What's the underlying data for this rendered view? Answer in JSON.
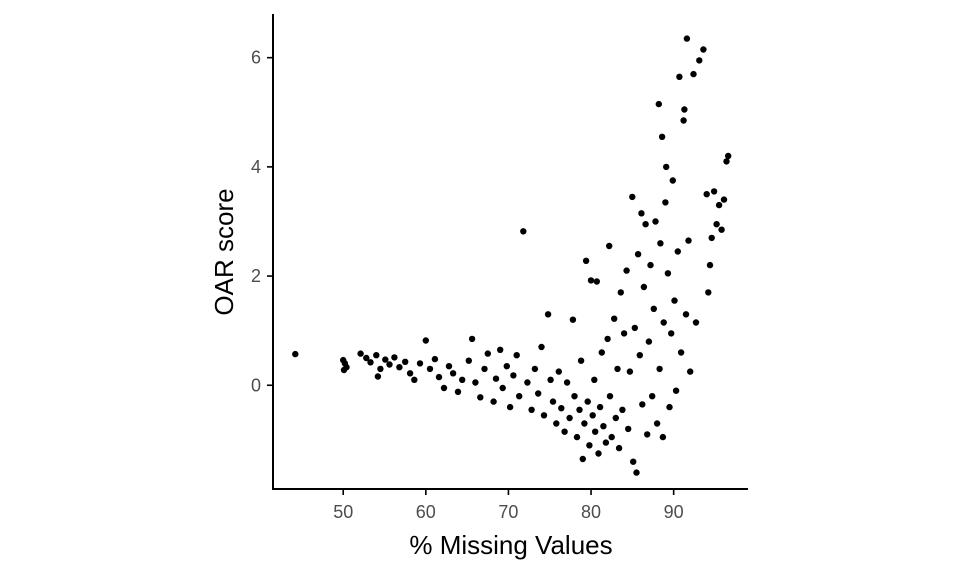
{
  "chart_data": {
    "type": "scatter",
    "xlabel": "% Missing Values",
    "ylabel": "OAR score",
    "xlim": [
      41.5,
      99
    ],
    "ylim": [
      -1.9,
      6.8
    ],
    "x_ticks": [
      50,
      60,
      70,
      80,
      90
    ],
    "x_tick_labels": [
      "50",
      "60",
      "70",
      "80",
      "90"
    ],
    "y_ticks": [
      0,
      2,
      4,
      6
    ],
    "y_tick_labels": [
      "0",
      "2",
      "4",
      "6"
    ],
    "grid": false,
    "legend": "none",
    "point_color": "#000000",
    "points": [
      [
        44.2,
        0.57
      ],
      [
        50.0,
        0.46
      ],
      [
        50.2,
        0.4
      ],
      [
        50.4,
        0.33
      ],
      [
        50.1,
        0.28
      ],
      [
        52.1,
        0.58
      ],
      [
        52.8,
        0.5
      ],
      [
        53.3,
        0.42
      ],
      [
        54.0,
        0.55
      ],
      [
        54.5,
        0.3
      ],
      [
        54.2,
        0.16
      ],
      [
        55.1,
        0.47
      ],
      [
        55.6,
        0.38
      ],
      [
        56.2,
        0.51
      ],
      [
        56.8,
        0.33
      ],
      [
        57.5,
        0.43
      ],
      [
        58.1,
        0.22
      ],
      [
        58.6,
        0.1
      ],
      [
        59.3,
        0.4
      ],
      [
        60.0,
        0.82
      ],
      [
        60.5,
        0.3
      ],
      [
        61.1,
        0.48
      ],
      [
        61.6,
        0.15
      ],
      [
        62.2,
        -0.05
      ],
      [
        62.8,
        0.35
      ],
      [
        63.3,
        0.22
      ],
      [
        63.9,
        -0.12
      ],
      [
        64.4,
        0.1
      ],
      [
        65.2,
        0.45
      ],
      [
        65.6,
        0.85
      ],
      [
        66.0,
        0.05
      ],
      [
        66.6,
        -0.22
      ],
      [
        67.1,
        0.3
      ],
      [
        67.5,
        0.58
      ],
      [
        68.2,
        -0.3
      ],
      [
        68.5,
        0.12
      ],
      [
        69.0,
        0.65
      ],
      [
        69.3,
        -0.05
      ],
      [
        69.8,
        0.35
      ],
      [
        70.2,
        -0.4
      ],
      [
        70.6,
        0.18
      ],
      [
        71.0,
        0.55
      ],
      [
        71.3,
        -0.2
      ],
      [
        71.8,
        2.82
      ],
      [
        72.3,
        0.05
      ],
      [
        72.8,
        -0.45
      ],
      [
        73.2,
        0.3
      ],
      [
        73.6,
        -0.15
      ],
      [
        74.0,
        0.7
      ],
      [
        74.3,
        -0.55
      ],
      [
        74.8,
        1.3
      ],
      [
        75.1,
        0.1
      ],
      [
        75.4,
        -0.3
      ],
      [
        75.8,
        -0.7
      ],
      [
        76.1,
        0.25
      ],
      [
        76.4,
        -0.42
      ],
      [
        76.8,
        -0.85
      ],
      [
        77.1,
        0.05
      ],
      [
        77.4,
        -0.6
      ],
      [
        77.8,
        1.2
      ],
      [
        78.0,
        -0.2
      ],
      [
        78.3,
        -0.95
      ],
      [
        78.6,
        -0.45
      ],
      [
        78.8,
        0.45
      ],
      [
        79.0,
        -1.35
      ],
      [
        79.2,
        -0.7
      ],
      [
        79.4,
        2.28
      ],
      [
        79.6,
        -0.3
      ],
      [
        79.8,
        -1.1
      ],
      [
        80.0,
        1.92
      ],
      [
        80.2,
        -0.55
      ],
      [
        80.4,
        0.1
      ],
      [
        80.5,
        -0.85
      ],
      [
        80.7,
        1.9
      ],
      [
        80.9,
        -1.25
      ],
      [
        81.1,
        -0.4
      ],
      [
        81.3,
        0.6
      ],
      [
        81.5,
        -0.75
      ],
      [
        81.8,
        -1.05
      ],
      [
        82.0,
        0.85
      ],
      [
        82.2,
        2.55
      ],
      [
        82.3,
        -0.2
      ],
      [
        82.5,
        -0.95
      ],
      [
        82.8,
        1.22
      ],
      [
        83.0,
        -0.6
      ],
      [
        83.2,
        0.3
      ],
      [
        83.4,
        -1.15
      ],
      [
        83.6,
        1.7
      ],
      [
        83.8,
        -0.45
      ],
      [
        84.0,
        0.95
      ],
      [
        84.3,
        2.1
      ],
      [
        84.5,
        -0.8
      ],
      [
        84.7,
        0.25
      ],
      [
        85.0,
        3.45
      ],
      [
        85.1,
        -1.4
      ],
      [
        85.3,
        1.05
      ],
      [
        85.5,
        -1.6
      ],
      [
        85.7,
        2.4
      ],
      [
        85.9,
        0.55
      ],
      [
        86.1,
        3.15
      ],
      [
        86.2,
        -0.35
      ],
      [
        86.4,
        1.8
      ],
      [
        86.6,
        2.95
      ],
      [
        86.8,
        -0.9
      ],
      [
        87.0,
        0.8
      ],
      [
        87.2,
        2.2
      ],
      [
        87.4,
        -0.2
      ],
      [
        87.6,
        1.4
      ],
      [
        87.8,
        3.0
      ],
      [
        88.0,
        -0.7
      ],
      [
        88.2,
        5.15
      ],
      [
        88.3,
        0.3
      ],
      [
        88.4,
        2.6
      ],
      [
        88.6,
        4.55
      ],
      [
        88.7,
        -0.95
      ],
      [
        88.8,
        1.15
      ],
      [
        89.0,
        3.35
      ],
      [
        89.1,
        4.0
      ],
      [
        89.3,
        2.05
      ],
      [
        89.5,
        -0.4
      ],
      [
        89.7,
        0.95
      ],
      [
        89.9,
        3.75
      ],
      [
        90.1,
        1.55
      ],
      [
        90.3,
        -0.1
      ],
      [
        90.5,
        2.45
      ],
      [
        90.7,
        5.65
      ],
      [
        90.9,
        0.6
      ],
      [
        91.2,
        4.85
      ],
      [
        91.3,
        5.05
      ],
      [
        91.5,
        1.3
      ],
      [
        91.6,
        6.35
      ],
      [
        91.8,
        2.65
      ],
      [
        92.0,
        0.25
      ],
      [
        92.4,
        5.7
      ],
      [
        92.7,
        1.15
      ],
      [
        93.1,
        5.95
      ],
      [
        93.6,
        6.15
      ],
      [
        94.0,
        3.5
      ],
      [
        94.2,
        1.7
      ],
      [
        94.4,
        2.2
      ],
      [
        94.6,
        2.7
      ],
      [
        94.9,
        3.55
      ],
      [
        95.2,
        2.95
      ],
      [
        95.5,
        3.3
      ],
      [
        95.8,
        2.85
      ],
      [
        96.1,
        3.4
      ],
      [
        96.4,
        4.1
      ],
      [
        96.6,
        4.2
      ]
    ]
  }
}
